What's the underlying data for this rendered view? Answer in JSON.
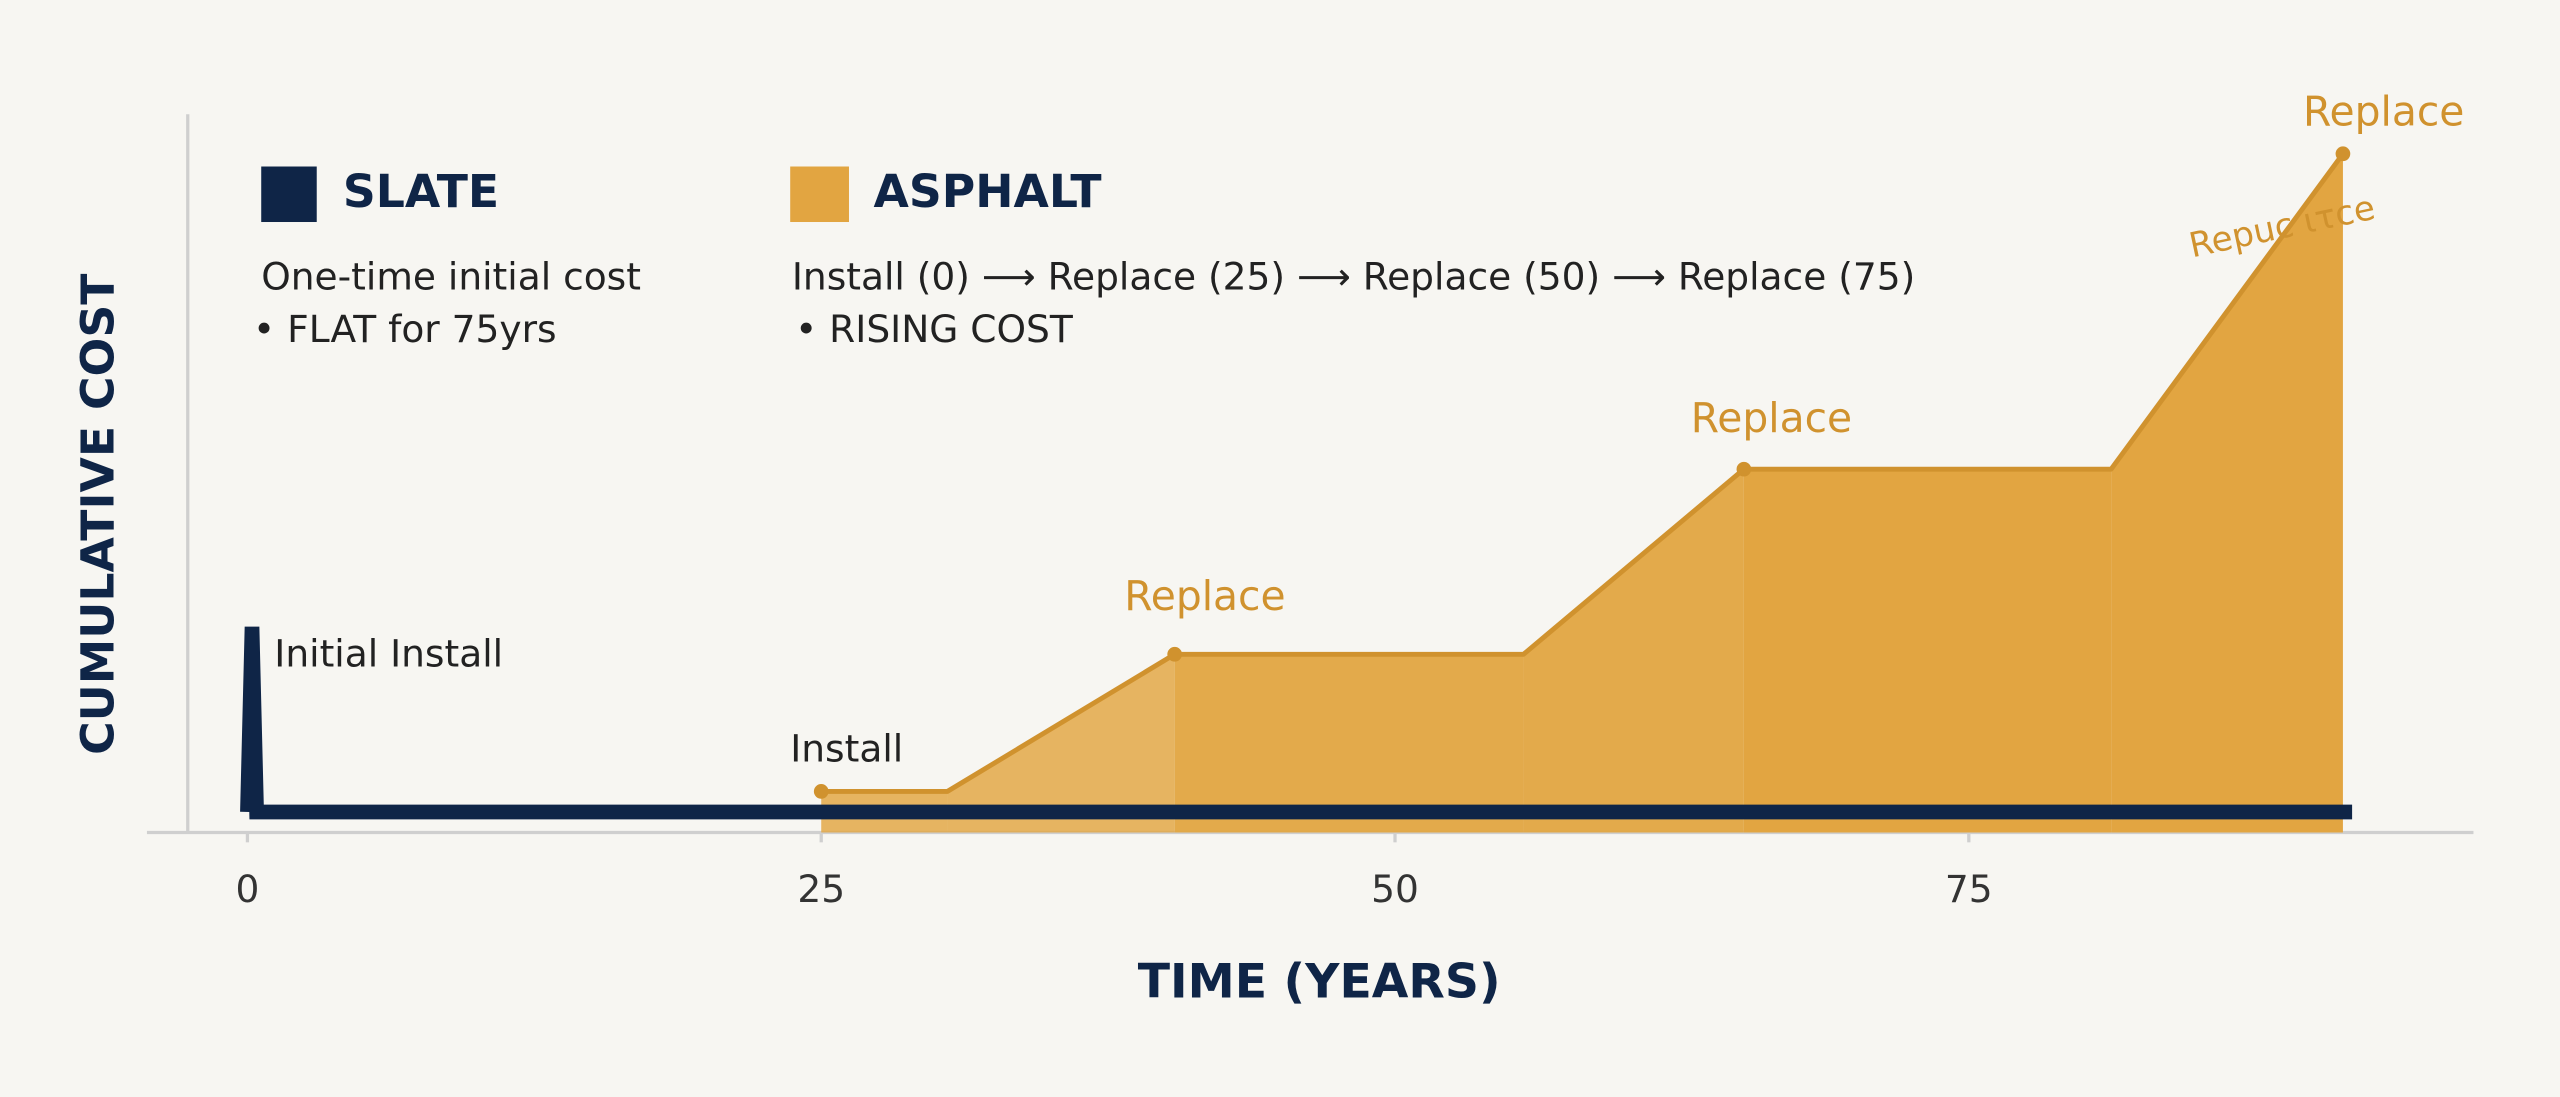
{
  "chart_data": {
    "type": "area",
    "xlabel": "TIME (YEARS)",
    "ylabel": "CUMULATIVE COST",
    "xlim": [
      -2.6,
      94
    ],
    "xticks": [
      0,
      25,
      50,
      75
    ],
    "ylim": [
      0,
      100
    ],
    "series": [
      {
        "name": "SLATE",
        "color": "#0f2547",
        "description": [
          "One-time initial cost",
          "• FLAT for 75yrs"
        ],
        "x": [
          0,
          0.2,
          0.4,
          91.7
        ],
        "values": [
          3,
          30,
          3,
          3
        ]
      },
      {
        "name": "ASPHALT",
        "color": "#e2a541",
        "description": [
          "Install (0) ⟶ Replace (25) ⟶ Replace (50) ⟶ Replace (75)",
          "• RISING COST"
        ],
        "x": [
          25,
          30.5,
          40.4,
          55.6,
          65.2,
          81.2,
          91.3
        ],
        "values": [
          6,
          6,
          26,
          26,
          53,
          53,
          99
        ]
      }
    ],
    "annotations": [
      "Initial Install",
      "Install",
      "Replace",
      "Replace",
      "Repuc ιτce",
      "Replace"
    ]
  }
}
